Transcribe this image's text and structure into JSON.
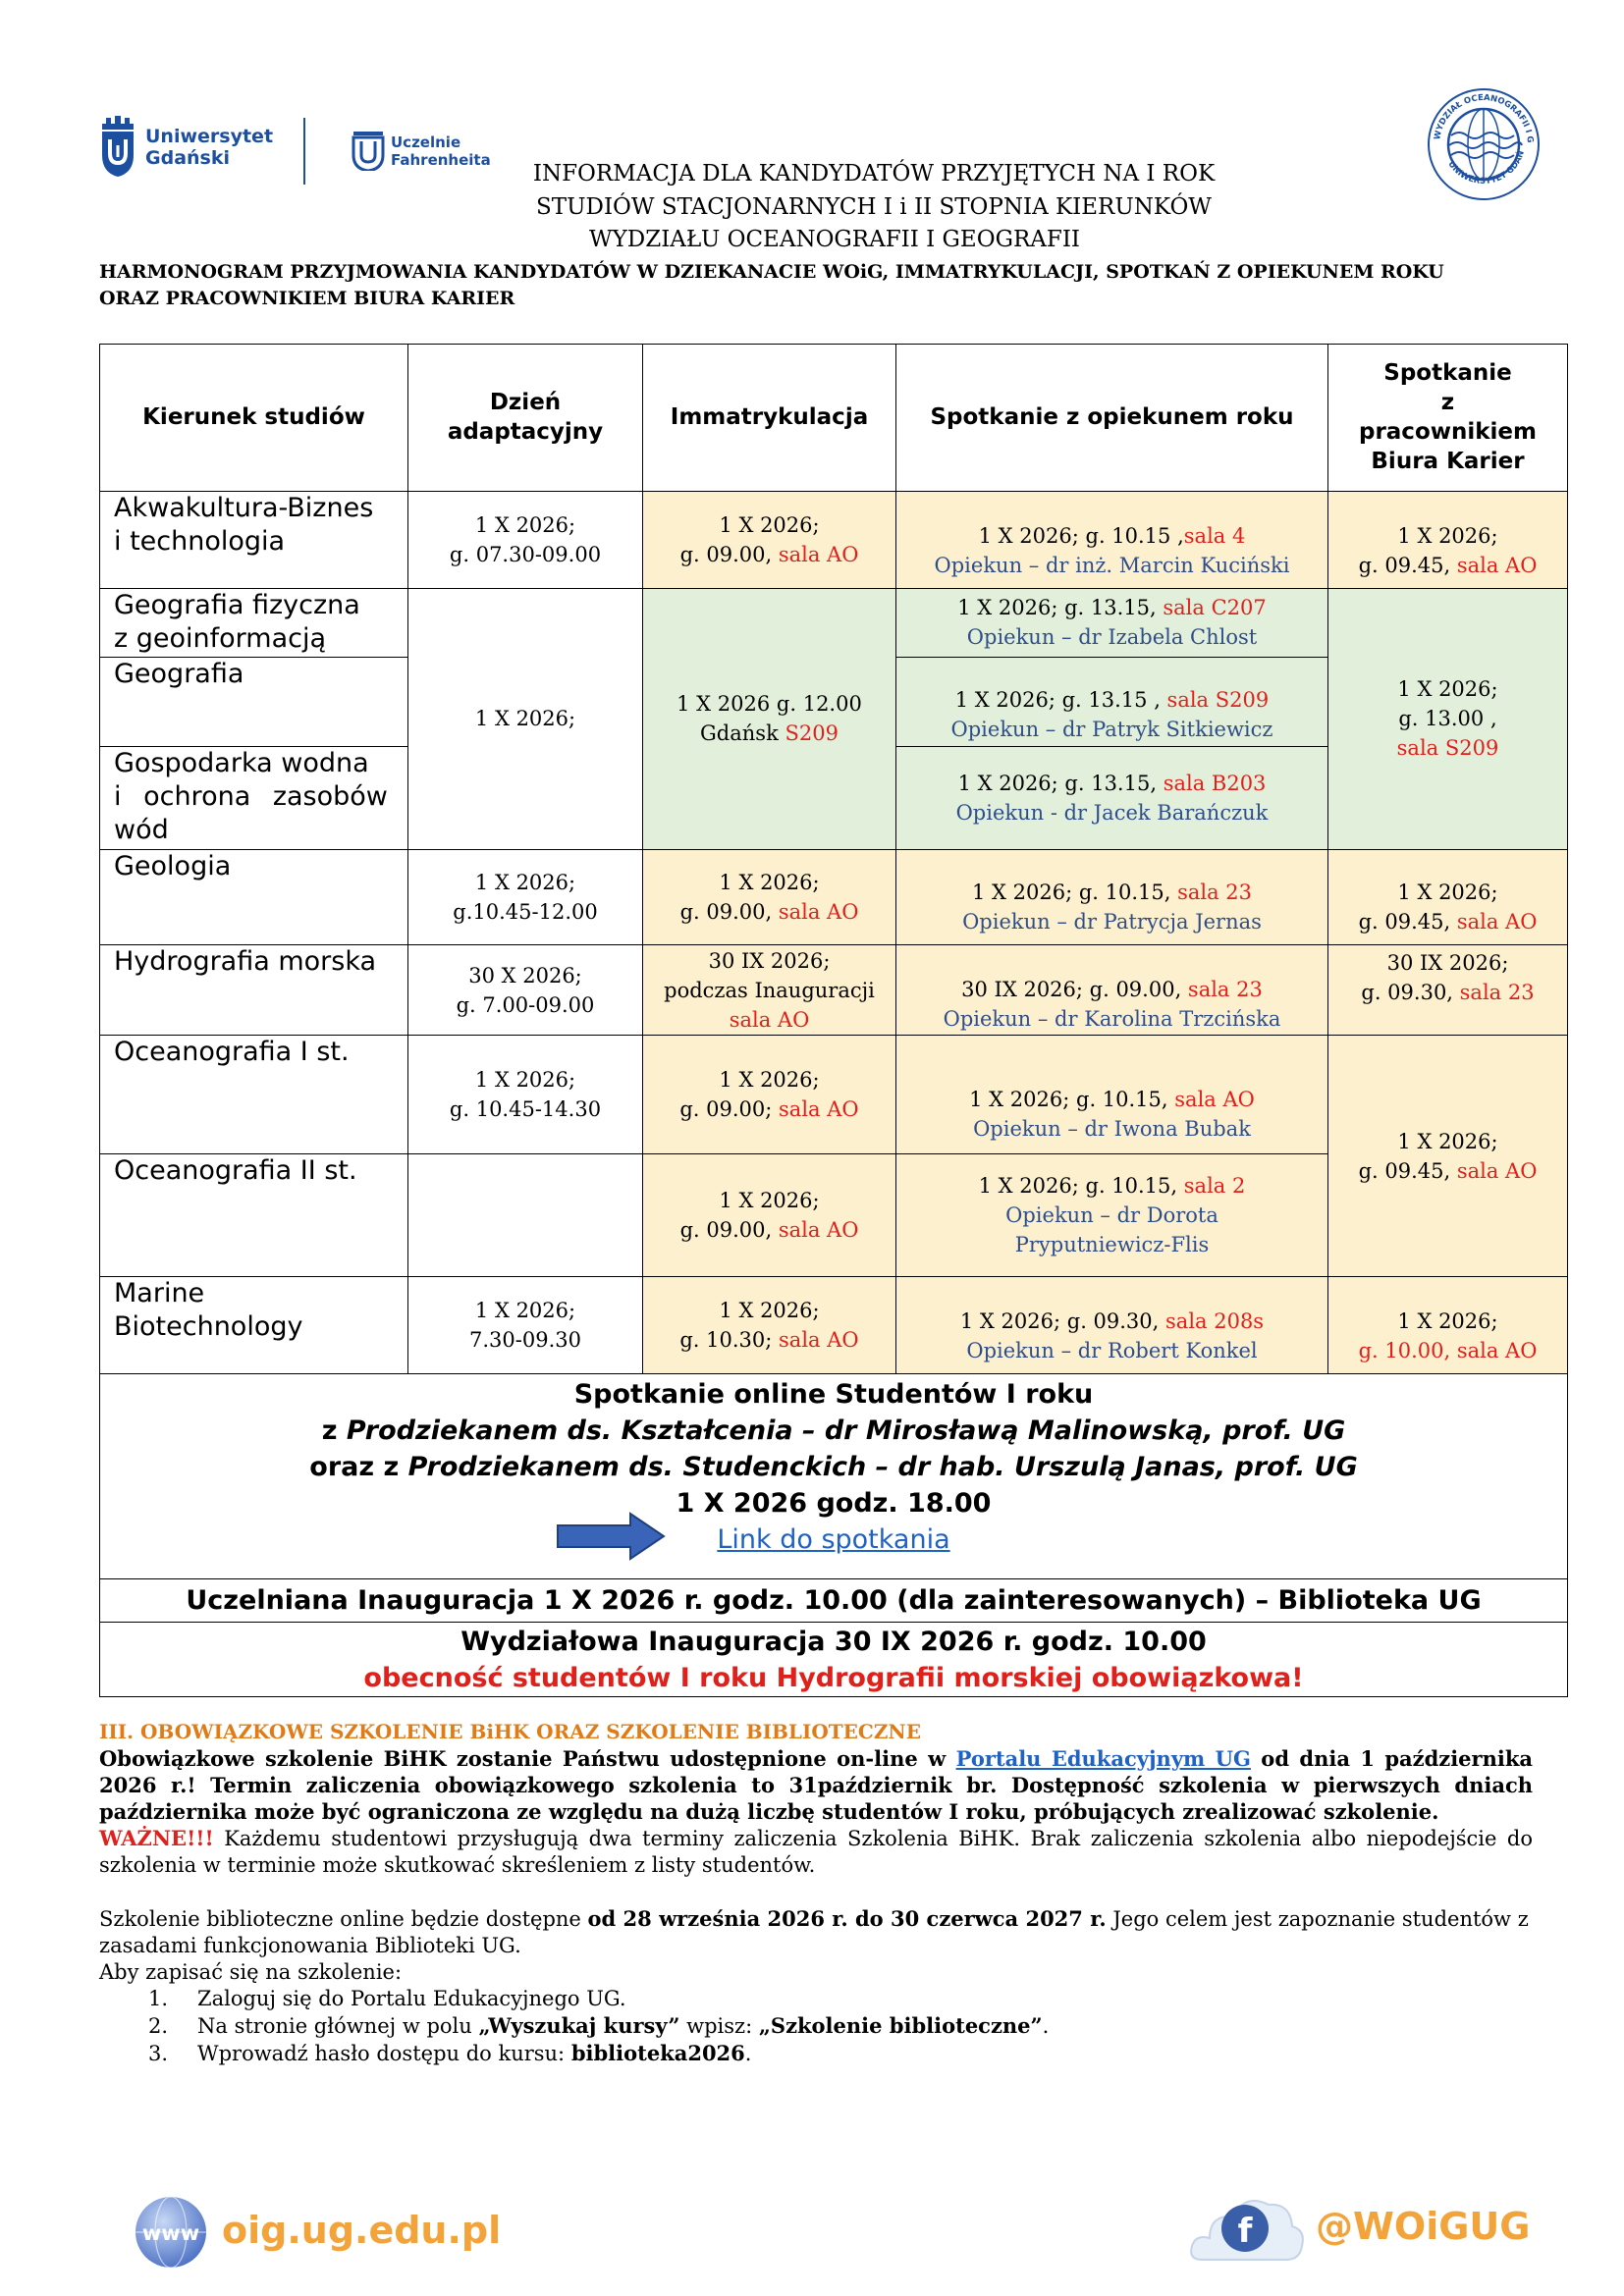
{
  "logos": {
    "ug": "Uniwersytet Gdański",
    "ug_line1": "Uniwersytet",
    "ug_line2": "Gdański",
    "fahrenheit_line1": "Uczelnie",
    "fahrenheit_line2": "Fahrenheita",
    "wydzial_seal": "WYDZIAŁ OCEANOGRAFII I GEOGRAFII UNIWERSYTET GDAŃSKI"
  },
  "header": {
    "line1": "INFORMACJA DLA KANDYDATÓW PRZYJĘTYCH NA I ROK",
    "line2": "STUDIÓW STACJONARNYCH I i II STOPNIA KIERUNKÓW",
    "line3": "WYDZIAŁU OCEANOGRAFII I GEOGRAFII",
    "subtitle1": "HARMONOGRAM PRZYJMOWANIA KANDYDATÓW W DZIEKANACIE WOiG, IMMATRYKULACJI, SPOTKAŃ Z OPIEKUNEM ROKU",
    "subtitle2": "ORAZ PRACOWNIKIEM BIURA KARIER"
  },
  "table": {
    "headers": {
      "kierunek": "Kierunek studiów",
      "dzien1": "Dzień",
      "dzien2": "adaptacyjny",
      "immat": "Immatrykulacja",
      "opiekun": "Spotkanie z opiekunem roku",
      "karier1": "Spotkanie",
      "karier2": "z",
      "karier3": "pracownikiem",
      "karier4": "Biura Karier"
    },
    "r1": {
      "name1": "Akwakultura-Biznes",
      "name2": "i technologia",
      "dzien1": "1 X 2026;",
      "dzien2": "g. 07.30-09.00",
      "immat1": "1 X 2026;",
      "immat2": "g. 09.00, ",
      "immat_sala": "sala AO",
      "op1": "1 X 2026; g. 10.15 ,",
      "op_sala": "sala 4",
      "op2": "Opiekun – dr inż. Marcin Kuciński",
      "k1": "1 X 2026;",
      "k2": "g. 09.45, ",
      "k_sala": "sala AO"
    },
    "r2": {
      "name1": "Geografia fizyczna",
      "name2": "z geoinformacją",
      "op1": "1 X 2026; g. 13.15, ",
      "op_sala": "sala C207",
      "op2": "Opiekun – dr Izabela Chlost"
    },
    "r3": {
      "name": "Geografia",
      "op1": "1 X 2026; g. 13.15 , ",
      "op_sala": "sala S209",
      "op2": "Opiekun – dr Patryk Sitkiewicz"
    },
    "r4": {
      "name1": "Gospodarka wodna",
      "name2": "i ochrona zasobów",
      "name3": "wód",
      "op1": "1 X 2026; g. 13.15, ",
      "op_sala": "sala B203",
      "op2": "Opiekun - dr Jacek Barańczuk"
    },
    "geo_group": {
      "dzien": "1 X 2026;",
      "immat1": "1 X 2026 g. 12.00",
      "immat2": "Gdańsk ",
      "immat_sala": "S209",
      "k1": "1 X 2026;",
      "k2": "g. 13.00 ,",
      "k_sala": "sala S209"
    },
    "r5": {
      "name": "Geologia",
      "dzien1": "1 X 2026;",
      "dzien2": "g.10.45-12.00",
      "immat1": "1 X 2026;",
      "immat2": "g. 09.00, ",
      "immat_sala": "sala AO",
      "op1": "1 X 2026; g. 10.15, ",
      "op_sala": "sala 23",
      "op2": "Opiekun – dr Patrycja Jernas",
      "k1": "1 X 2026;",
      "k2": "g. 09.45, ",
      "k_sala": "sala AO"
    },
    "r6": {
      "name": "Hydrografia morska",
      "dzien1": "30 X 2026;",
      "dzien2": "g. 7.00-09.00",
      "immat1": "30 IX 2026;",
      "immat2": "podczas Inauguracji",
      "immat_sala": "sala AO",
      "op1": "30 IX 2026; g. 09.00, ",
      "op_sala": "sala 23",
      "op2": "Opiekun – dr Karolina Trzcińska",
      "k1": "30 IX 2026;",
      "k2": "g. 09.30, ",
      "k_sala": "sala 23"
    },
    "r7": {
      "name": "Oceanografia I st.",
      "dzien1": "1 X 2026;",
      "dzien2": "g. 10.45-14.30",
      "immat1": "1 X 2026;",
      "immat2": "g. 09.00; ",
      "immat_sala": "sala AO",
      "op1": "1 X 2026; g. 10.15, ",
      "op_sala": "sala AO",
      "op2": "Opiekun – dr Iwona Bubak"
    },
    "ocean_group": {
      "k1": "1 X 2026;",
      "k2": "g. 09.45, ",
      "k_sala": "sala AO"
    },
    "r8": {
      "name": "Oceanografia II st.",
      "immat1": "1 X 2026;",
      "immat2": "g. 09.00, ",
      "immat_sala": "sala AO",
      "op1": "1 X 2026; g. 10.15, ",
      "op_sala": "sala 2",
      "op2": "Opiekun – dr Dorota",
      "op3": "Pryputniewicz-Flis"
    },
    "r9": {
      "name1": "Marine",
      "name2": "Biotechnology",
      "dzien1": "1 X 2026;",
      "dzien2": "7.30-09.30",
      "immat1": "1 X 2026;",
      "immat2": "g. 10.30; ",
      "immat_sala": "sala AO",
      "op1": "1 X 2026; g. 09.30, ",
      "op_sala": "sala 208s",
      "op2": "Opiekun – dr Robert Konkel",
      "k1": "1 X 2026;",
      "k_time": "g. 10.00, ",
      "k_sala": "sala AO"
    },
    "online": {
      "line1": "Spotkanie online Studentów I roku",
      "line2a": "z ",
      "line2b": "Prodziekanem ds. Kształcenia – dr Mirosławą Malinowską, prof. UG",
      "line3a": "oraz z ",
      "line3b": "Prodziekanem ds. Studenckich – dr hab. Urszulą Janas, prof. UG",
      "line4": "1 X 2026 godz. 18.00",
      "link": "Link do spotkania"
    },
    "inaug_uczelnia": "Uczelniana Inauguracja 1 X 2026 r. godz. 10.00 (dla zainteresowanych) – Biblioteka UG",
    "inaug_wydzial": "Wydziałowa Inauguracja 30 IX 2026 r. godz. 10.00",
    "inaug_note": "obecność studentów I roku Hydrografii morskiej obowiązkowa!"
  },
  "section3": {
    "title": "III. OBOWIĄZKOWE SZKOLENIE BiHK ORAZ SZKOLENIE BIBLIOTECZNE",
    "p1a": "Obowiązkowe szkolenie BiHK zostanie Państwu udostępnione on-line w ",
    "p1link": "Portalu Edukacyjnym UG",
    "p1b": " od dnia 1 października 2026 r.! Termin zaliczenia obowiązkowego szkolenia to 31październik br. Dostępność szkolenia w pierwszych dniach października może być ograniczona ze względu na dużą liczbę studentów I roku, próbujących zrealizować szkolenie.",
    "p2a": "WAŻNE!!!",
    "p2b": " Każdemu studentowi przysługują dwa terminy zaliczenia Szkolenia BiHK. Brak zaliczenia szkolenia albo niepodejście do szkolenia w terminie może skutkować skreśleniem z listy studentów.",
    "p3a": "Szkolenie biblioteczne online będzie dostępne ",
    "p3b": "od 28 września 2026 r. do 30 czerwca 2027 r.",
    "p3c": " Jego celem jest zapoznanie studentów z zasadami funkcjonowania Biblioteki UG.",
    "p4": "Aby zapisać się na szkolenie:",
    "list": [
      {
        "num": "1.",
        "a": "Zaloguj się do Portalu Edukacyjnego UG.",
        "b": "",
        "c": "",
        "d": "",
        "e": ""
      },
      {
        "num": "2.",
        "a": "Na stronie głównej w polu ",
        "b": "„Wyszukaj kursy”",
        "c": " wpisz: ",
        "d": "„Szkolenie biblioteczne”",
        "e": "."
      },
      {
        "num": "3.",
        "a": "Wprowadź hasło dostępu do kursu: ",
        "b": "biblioteka2026",
        "c": ".",
        "d": "",
        "e": ""
      }
    ]
  },
  "footer": {
    "web_badge": "www",
    "website": "oig.ug.edu.pl",
    "fb_badge": "f",
    "social": "@WOiGUG"
  },
  "colors": {
    "yellow_cell": "#fdf0cf",
    "green_cell": "#e2efda",
    "red": "#e0201b",
    "blue": "#2d4e8a",
    "orange": "#e07c17",
    "ug_blue": "#1d4fa0"
  }
}
